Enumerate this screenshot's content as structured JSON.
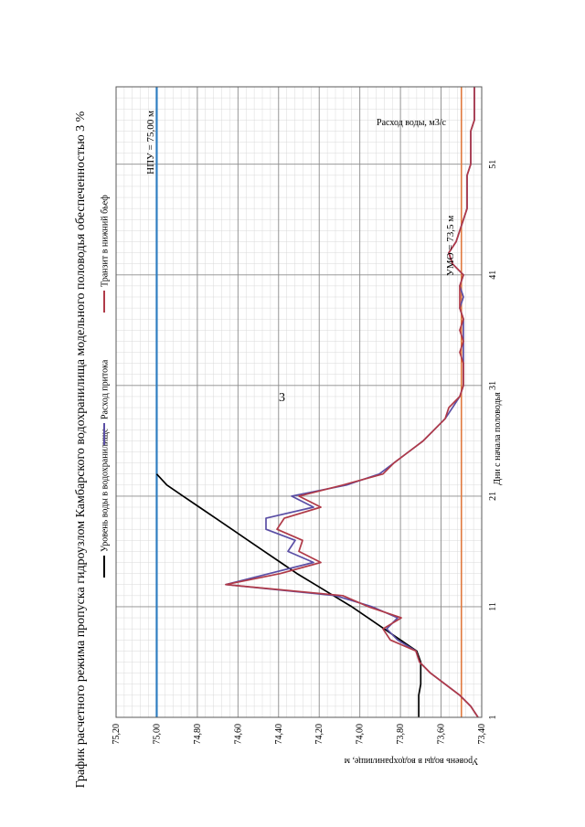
{
  "page_number": "3",
  "chart_data": {
    "type": "line",
    "title": "График расчетного режима пропуска гидроузлом Камбарского водохранилища модельного половодья обеспеченностью 3 %",
    "xlabel": "Дни с начала половодья",
    "ylabel_left": "Уровень воды в водохранилище, м",
    "ylabel_right": "Расход воды, м3/с",
    "x_ticks": [
      1,
      11,
      21,
      31,
      41,
      51
    ],
    "xlim": [
      1,
      58
    ],
    "ylim_left": [
      73.4,
      75.2
    ],
    "left_ticks": [
      "73,40",
      "73,60",
      "73,80",
      "74,00",
      "74,20",
      "74,40",
      "74,60",
      "74,80",
      "75,00",
      "75,20"
    ],
    "ylim_right": [
      0,
      100
    ],
    "right_ticks": [
      "0",
      "10",
      "20",
      "30",
      "40",
      "50",
      "60",
      "70",
      "80",
      "90",
      "100"
    ],
    "grid": true,
    "legend_position": "top",
    "annotations": {
      "npu": "НПУ = 75,00 м",
      "umo": "УМО = 73,5 м"
    },
    "npu_level": 75.0,
    "umo_level": 73.5,
    "series": [
      {
        "name": "Уровень воды в водохранилище",
        "axis": "left",
        "color": "#000000",
        "x": [
          1,
          2,
          3,
          4,
          5,
          6,
          7,
          8,
          9,
          10,
          11,
          12,
          13,
          14,
          15,
          16,
          17,
          18,
          19,
          20,
          21,
          22,
          23
        ],
        "y": [
          73.71,
          73.71,
          73.71,
          73.7,
          73.7,
          73.7,
          73.72,
          73.8,
          73.88,
          73.96,
          74.04,
          74.13,
          74.22,
          74.31,
          74.39,
          74.47,
          74.55,
          74.63,
          74.71,
          74.79,
          74.87,
          74.95,
          75.0
        ]
      },
      {
        "name": "Расход притока",
        "axis": "right",
        "color": "#5b4fa5",
        "x": [
          1,
          2,
          3,
          4,
          5,
          6,
          7,
          8,
          9,
          10,
          11,
          12,
          13,
          14,
          15,
          16,
          17,
          18,
          19,
          20,
          21,
          22,
          23,
          24,
          25,
          26,
          27,
          28,
          29,
          30,
          31,
          32,
          33,
          34,
          35,
          36,
          37,
          38,
          39,
          40,
          41,
          42,
          43,
          44,
          45,
          46,
          47,
          48,
          49,
          50,
          51,
          52,
          53,
          54,
          55,
          56,
          57,
          58
        ],
        "y": [
          1,
          3,
          6,
          10,
          14,
          17,
          18,
          23,
          26,
          23,
          30,
          40,
          70,
          58,
          46,
          53,
          51,
          59,
          59,
          46,
          52,
          37,
          28,
          24,
          20,
          16,
          13,
          10,
          8,
          6,
          5,
          5,
          5,
          5,
          5,
          5,
          5,
          6,
          5,
          6,
          5,
          8,
          9,
          7,
          6,
          5,
          4,
          4,
          4,
          4,
          3,
          3,
          3,
          3,
          2,
          2,
          2,
          2
        ]
      },
      {
        "name": "Транзит в нижний бьеф",
        "axis": "right",
        "color": "#b03a48",
        "x": [
          1,
          2,
          3,
          4,
          5,
          6,
          7,
          8,
          9,
          10,
          11,
          12,
          13,
          14,
          15,
          16,
          17,
          18,
          19,
          20,
          21,
          22,
          23,
          24,
          25,
          26,
          27,
          28,
          29,
          30,
          31,
          32,
          33,
          34,
          35,
          36,
          37,
          38,
          39,
          40,
          41,
          42,
          43,
          44,
          45,
          46,
          47,
          48,
          49,
          50,
          51,
          52,
          53,
          54,
          55,
          56,
          57,
          58
        ],
        "y": [
          1,
          3,
          6,
          10,
          14,
          17,
          18,
          25,
          27,
          22,
          31,
          38,
          70,
          55,
          44,
          50,
          49,
          56,
          54,
          44,
          50,
          38,
          27,
          24,
          20,
          16,
          13,
          10,
          9,
          6,
          5,
          5,
          5,
          6,
          5,
          6,
          5,
          6,
          6,
          6,
          5,
          8,
          9,
          7,
          6,
          5,
          4,
          4,
          4,
          4,
          3,
          3,
          3,
          3,
          2,
          2,
          2,
          2
        ]
      }
    ]
  }
}
